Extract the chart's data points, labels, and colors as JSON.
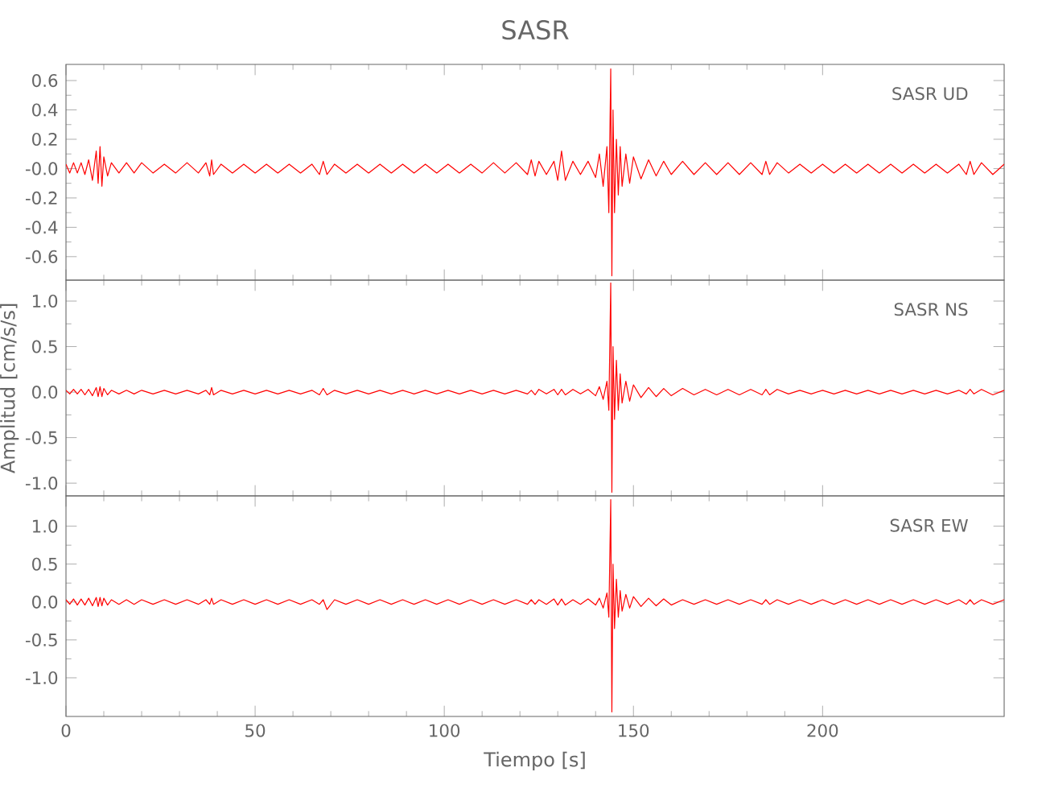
{
  "chart_data": [
    {
      "type": "line",
      "title": "SASR",
      "annotations": [
        "SASR UD"
      ],
      "tick_labels": "y",
      "xlim": [
        0,
        248
      ],
      "xticks": [
        0,
        50,
        100,
        150,
        200
      ],
      "ylim": [
        -0.76,
        0.71
      ],
      "yticks": [
        {
          "value": 0.6,
          "label": "0.6"
        },
        {
          "value": 0.4,
          "label": "0.4"
        },
        {
          "value": 0.2,
          "label": "0.2"
        },
        {
          "value": 0,
          "label": "-0.0"
        },
        {
          "value": -0.2,
          "label": "-0.2"
        },
        {
          "value": -0.4,
          "label": "-0.4"
        },
        {
          "value": -0.6,
          "label": "-0.6"
        }
      ],
      "x": [
        0,
        1,
        2,
        3,
        4,
        5,
        6,
        7,
        8,
        8.5,
        9,
        9.5,
        10,
        11,
        12,
        14,
        16,
        18,
        20,
        23,
        26,
        29,
        32,
        35,
        37,
        38,
        38.5,
        39,
        41,
        44,
        47,
        50,
        53,
        56,
        59,
        62,
        65,
        67,
        68,
        69,
        71,
        74,
        77,
        80,
        83,
        86,
        89,
        92,
        95,
        98,
        101,
        104,
        107,
        110,
        113,
        116,
        119,
        122,
        123,
        124,
        125,
        127,
        129,
        130,
        131,
        132,
        134,
        136,
        138,
        140,
        141,
        142,
        143,
        143.5,
        144,
        144.3,
        144.6,
        145,
        145.5,
        146,
        146.5,
        147,
        148,
        149,
        150,
        152,
        154,
        156,
        158,
        160,
        163,
        166,
        169,
        172,
        175,
        178,
        181,
        184,
        185,
        186,
        188,
        191,
        194,
        197,
        200,
        203,
        206,
        209,
        212,
        215,
        218,
        221,
        224,
        227,
        230,
        233,
        236,
        238,
        239,
        240,
        242,
        245,
        248
      ],
      "series": [
        {
          "color": "#ff0000",
          "values": [
            0.03,
            -0.03,
            0.04,
            -0.03,
            0.04,
            -0.04,
            0.06,
            -0.08,
            0.12,
            -0.1,
            0.15,
            -0.12,
            0.08,
            -0.05,
            0.04,
            -0.03,
            0.04,
            -0.03,
            0.04,
            -0.03,
            0.03,
            -0.03,
            0.04,
            -0.03,
            0.04,
            -0.05,
            0.06,
            -0.04,
            0.03,
            -0.03,
            0.03,
            -0.03,
            0.03,
            -0.03,
            0.03,
            -0.03,
            0.03,
            -0.04,
            0.05,
            -0.04,
            0.03,
            -0.03,
            0.03,
            -0.03,
            0.03,
            -0.03,
            0.03,
            -0.03,
            0.03,
            -0.03,
            0.03,
            -0.03,
            0.03,
            -0.03,
            0.04,
            -0.03,
            0.04,
            -0.04,
            0.06,
            -0.05,
            0.05,
            -0.04,
            0.05,
            -0.08,
            0.12,
            -0.08,
            0.05,
            -0.04,
            0.05,
            -0.06,
            0.1,
            -0.12,
            0.15,
            -0.3,
            0.68,
            -0.73,
            0.4,
            -0.3,
            0.2,
            -0.18,
            0.15,
            -0.12,
            0.1,
            -0.1,
            0.08,
            -0.07,
            0.06,
            -0.05,
            0.05,
            -0.04,
            0.05,
            -0.04,
            0.04,
            -0.04,
            0.04,
            -0.04,
            0.04,
            -0.04,
            0.05,
            -0.04,
            0.04,
            -0.03,
            0.03,
            -0.03,
            0.03,
            -0.03,
            0.03,
            -0.03,
            0.03,
            -0.03,
            0.03,
            -0.03,
            0.03,
            -0.03,
            0.03,
            -0.03,
            0.03,
            -0.04,
            0.05,
            -0.04,
            0.04,
            -0.04,
            0.03
          ]
        }
      ]
    },
    {
      "type": "line",
      "ylabel": "Amplitud [cm/s/s]",
      "annotations": [
        "SASR NS"
      ],
      "tick_labels": "y",
      "xlim": [
        0,
        248
      ],
      "xticks": [
        0,
        50,
        100,
        150,
        200
      ],
      "ylim": [
        -1.14,
        1.23
      ],
      "yticks": [
        {
          "value": 1,
          "label": "1.0"
        },
        {
          "value": 0.5,
          "label": "0.5"
        },
        {
          "value": 0,
          "label": "0.0"
        },
        {
          "value": -0.5,
          "label": "-0.5"
        },
        {
          "value": -1,
          "label": "-1.0"
        }
      ],
      "x": [
        0,
        1,
        2,
        3,
        4,
        5,
        6,
        7,
        8,
        8.5,
        9,
        9.5,
        10,
        11,
        12,
        14,
        16,
        18,
        20,
        23,
        26,
        29,
        32,
        35,
        37,
        38,
        38.5,
        39,
        41,
        44,
        47,
        50,
        53,
        56,
        59,
        62,
        65,
        67,
        68,
        69,
        71,
        74,
        77,
        80,
        83,
        86,
        89,
        92,
        95,
        98,
        101,
        104,
        107,
        110,
        113,
        116,
        119,
        122,
        123,
        124,
        125,
        127,
        129,
        130,
        131,
        132,
        134,
        136,
        138,
        140,
        141,
        142,
        143,
        143.5,
        144,
        144.3,
        144.6,
        145,
        145.5,
        146,
        146.5,
        147,
        148,
        149,
        150,
        152,
        154,
        156,
        158,
        160,
        163,
        166,
        169,
        172,
        175,
        178,
        181,
        184,
        185,
        186,
        188,
        191,
        194,
        197,
        200,
        203,
        206,
        209,
        212,
        215,
        218,
        221,
        224,
        227,
        230,
        233,
        236,
        238,
        239,
        240,
        242,
        245,
        248
      ],
      "series": [
        {
          "color": "#ff0000",
          "values": [
            0.02,
            -0.02,
            0.03,
            -0.02,
            0.03,
            -0.03,
            0.03,
            -0.04,
            0.05,
            -0.05,
            0.06,
            -0.05,
            0.04,
            -0.03,
            0.02,
            -0.02,
            0.02,
            -0.02,
            0.02,
            -0.02,
            0.02,
            -0.02,
            0.02,
            -0.02,
            0.02,
            -0.03,
            0.05,
            -0.03,
            0.02,
            -0.02,
            0.02,
            -0.02,
            0.02,
            -0.02,
            0.02,
            -0.02,
            0.02,
            -0.03,
            0.04,
            -0.03,
            0.02,
            -0.02,
            0.02,
            -0.02,
            0.02,
            -0.02,
            0.02,
            -0.02,
            0.02,
            -0.02,
            0.02,
            -0.02,
            0.02,
            -0.02,
            0.02,
            -0.02,
            0.02,
            -0.02,
            0.02,
            -0.03,
            0.03,
            -0.02,
            0.03,
            -0.03,
            0.03,
            -0.03,
            0.03,
            -0.02,
            0.03,
            -0.04,
            0.06,
            -0.08,
            0.12,
            -0.2,
            1.2,
            -1.1,
            0.5,
            -0.3,
            0.35,
            -0.2,
            0.2,
            -0.12,
            0.12,
            -0.1,
            0.08,
            -0.06,
            0.05,
            -0.05,
            0.04,
            -0.04,
            0.04,
            -0.03,
            0.03,
            -0.03,
            0.03,
            -0.03,
            0.03,
            -0.03,
            0.03,
            -0.03,
            0.03,
            -0.02,
            0.02,
            -0.02,
            0.02,
            -0.02,
            0.02,
            -0.02,
            0.02,
            -0.02,
            0.02,
            -0.02,
            0.02,
            -0.02,
            0.02,
            -0.02,
            0.02,
            -0.02,
            0.03,
            -0.02,
            0.03,
            -0.03,
            0.02
          ]
        }
      ]
    },
    {
      "type": "line",
      "xlabel": "Tiempo [s]",
      "annotations": [
        "SASR EW"
      ],
      "xlim": [
        0,
        248
      ],
      "xticks": [
        0,
        50,
        100,
        150,
        200
      ],
      "ylim": [
        -1.51,
        1.4
      ],
      "yticks": [
        {
          "value": 1,
          "label": "1.0"
        },
        {
          "value": 0.5,
          "label": "0.5"
        },
        {
          "value": 0,
          "label": "0.0"
        },
        {
          "value": -0.5,
          "label": "-0.5"
        },
        {
          "value": -1,
          "label": "-1.0"
        }
      ],
      "x": [
        0,
        1,
        2,
        3,
        4,
        5,
        6,
        7,
        8,
        8.5,
        9,
        9.5,
        10,
        11,
        12,
        14,
        16,
        18,
        20,
        23,
        26,
        29,
        32,
        35,
        37,
        38,
        38.5,
        39,
        41,
        44,
        47,
        50,
        53,
        56,
        59,
        62,
        65,
        67,
        68,
        69,
        71,
        74,
        77,
        80,
        83,
        86,
        89,
        92,
        95,
        98,
        101,
        104,
        107,
        110,
        113,
        116,
        119,
        122,
        123,
        124,
        125,
        127,
        129,
        130,
        131,
        132,
        134,
        136,
        138,
        140,
        141,
        142,
        143,
        143.5,
        144,
        144.3,
        144.6,
        145,
        145.5,
        146,
        146.5,
        147,
        148,
        149,
        150,
        152,
        154,
        156,
        158,
        160,
        163,
        166,
        169,
        172,
        175,
        178,
        181,
        184,
        185,
        186,
        188,
        191,
        194,
        197,
        200,
        203,
        206,
        209,
        212,
        215,
        218,
        221,
        224,
        227,
        230,
        233,
        236,
        238,
        239,
        240,
        242,
        245,
        248
      ],
      "series": [
        {
          "color": "#ff0000",
          "values": [
            0.03,
            -0.03,
            0.04,
            -0.04,
            0.04,
            -0.04,
            0.05,
            -0.05,
            0.06,
            -0.06,
            0.06,
            -0.05,
            0.05,
            -0.04,
            0.03,
            -0.03,
            0.03,
            -0.03,
            0.03,
            -0.03,
            0.03,
            -0.03,
            0.03,
            -0.03,
            0.03,
            -0.03,
            0.05,
            -0.03,
            0.03,
            -0.03,
            0.03,
            -0.03,
            0.03,
            -0.03,
            0.03,
            -0.03,
            0.03,
            -0.03,
            0.03,
            -0.1,
            0.03,
            -0.03,
            0.03,
            -0.03,
            0.03,
            -0.03,
            0.03,
            -0.03,
            0.03,
            -0.03,
            0.03,
            -0.03,
            0.03,
            -0.03,
            0.03,
            -0.03,
            0.03,
            -0.03,
            0.03,
            -0.03,
            0.03,
            -0.03,
            0.04,
            -0.04,
            0.04,
            -0.04,
            0.03,
            -0.03,
            0.04,
            -0.04,
            0.05,
            -0.08,
            0.12,
            -0.2,
            1.35,
            -1.45,
            0.5,
            -0.35,
            0.3,
            -0.2,
            0.15,
            -0.12,
            0.1,
            -0.08,
            0.07,
            -0.06,
            0.05,
            -0.05,
            0.04,
            -0.04,
            0.03,
            -0.03,
            0.03,
            -0.03,
            0.03,
            -0.03,
            0.03,
            -0.03,
            0.03,
            -0.03,
            0.03,
            -0.03,
            0.03,
            -0.03,
            0.03,
            -0.03,
            0.03,
            -0.03,
            0.03,
            -0.03,
            0.03,
            -0.03,
            0.03,
            -0.03,
            0.03,
            -0.03,
            0.03,
            -0.03,
            0.03,
            -0.03,
            0.03,
            -0.03,
            0.03
          ]
        }
      ]
    }
  ]
}
